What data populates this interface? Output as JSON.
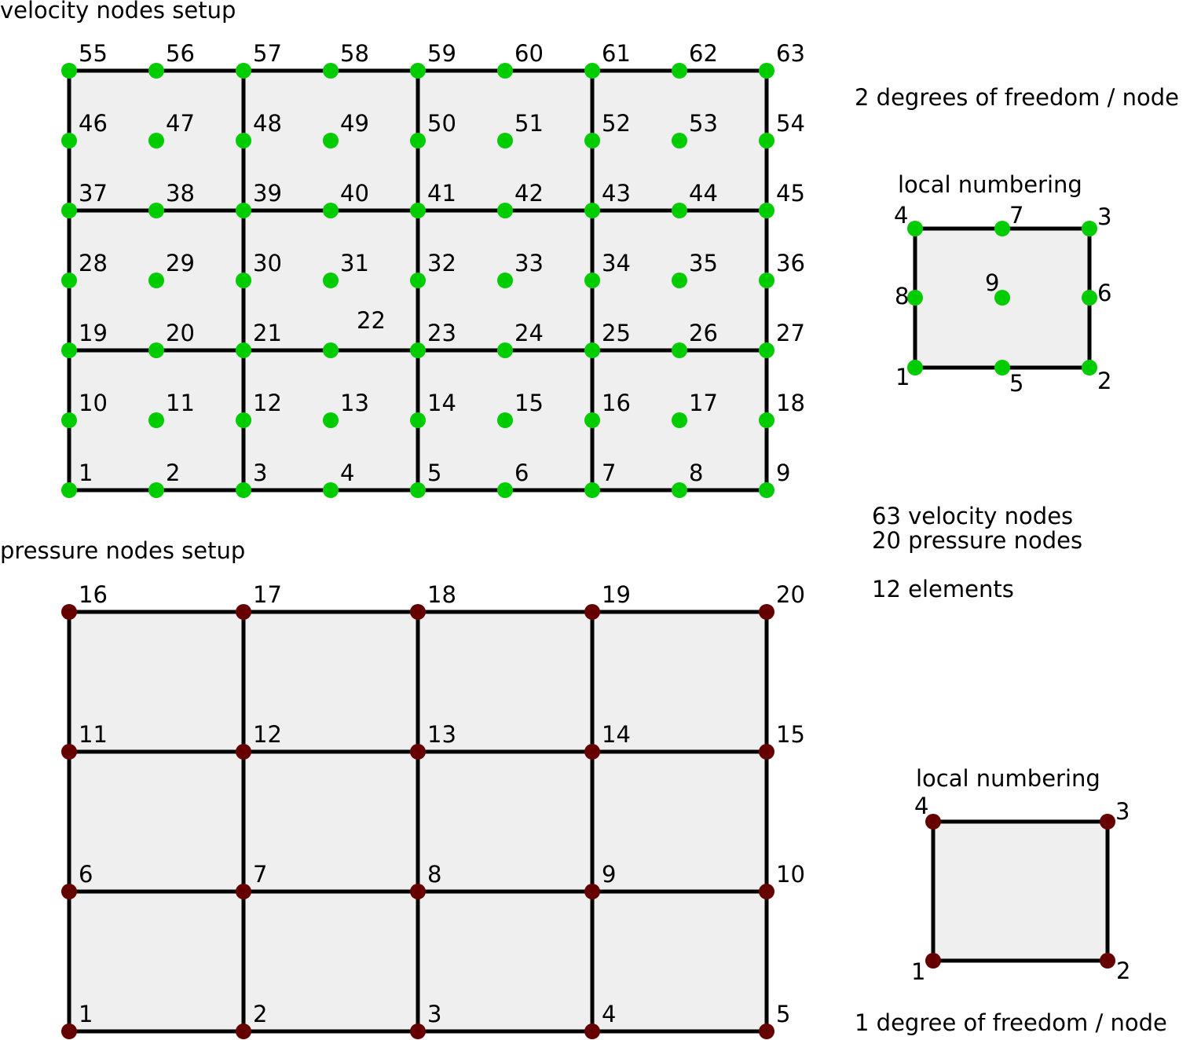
{
  "velocity_section": {
    "title": "velocity nodes setup",
    "node_color": "#00cc00",
    "dof_text": "2 degrees of freedom / node",
    "local_title": "local numbering",
    "local_nodes": [
      "1",
      "2",
      "3",
      "4",
      "5",
      "6",
      "7",
      "8",
      "9"
    ],
    "node_count_text": "63  velocity nodes",
    "labels": [
      "1",
      "2",
      "3",
      "4",
      "5",
      "6",
      "7",
      "8",
      "9",
      "10",
      "11",
      "12",
      "13",
      "14",
      "15",
      "16",
      "17",
      "18",
      "19",
      "20",
      "21",
      "22",
      "23",
      "24",
      "25",
      "26",
      "27",
      "28",
      "29",
      "30",
      "31",
      "32",
      "33",
      "34",
      "35",
      "36",
      "37",
      "38",
      "39",
      "40",
      "41",
      "42",
      "43",
      "44",
      "45",
      "46",
      "47",
      "48",
      "49",
      "50",
      "51",
      "52",
      "53",
      "54",
      "55",
      "56",
      "57",
      "58",
      "59",
      "60",
      "61",
      "62",
      "63"
    ]
  },
  "pressure_section": {
    "title": "pressure nodes setup",
    "node_color": "#660000",
    "dof_text": "1 degree of freedom / node",
    "local_title": "local numbering",
    "local_nodes": [
      "1",
      "2",
      "3",
      "4"
    ],
    "node_count_text": "20 pressure nodes",
    "labels": [
      "1",
      "2",
      "3",
      "4",
      "5",
      "6",
      "7",
      "8",
      "9",
      "10",
      "11",
      "12",
      "13",
      "14",
      "15",
      "16",
      "17",
      "18",
      "19",
      "20"
    ]
  },
  "summary": {
    "elements_text": "12 elements"
  },
  "colors": {
    "cell_fill": "#efefef",
    "line": "#000000"
  }
}
